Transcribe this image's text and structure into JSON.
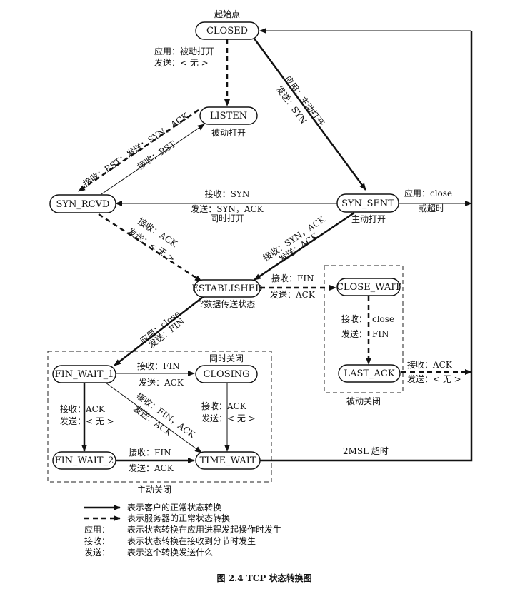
{
  "states": {
    "closed": "CLOSED",
    "listen": "LISTEN",
    "syn_rcvd": "SYN_RCVD",
    "syn_sent": "SYN_SENT",
    "established": "ESTABLISHED",
    "close_wait": "CLOSE_WAIT",
    "last_ack": "LAST_ACK",
    "fin_wait_1": "FIN_WAIT_1",
    "fin_wait_2": "FIN_WAIT_2",
    "closing": "CLOSING",
    "time_wait": "TIME_WAIT"
  },
  "notes": {
    "start": "起始点",
    "passive_open": "被动打开",
    "active_open": "主动打开",
    "simul_open": "同时打开",
    "data_transfer": "?数据传送状态",
    "simul_close": "同时关闭",
    "passive_close": "被动关闭",
    "active_close": "主动关闭"
  },
  "labels": {
    "closed_listen_1": "应用：被动打开",
    "closed_listen_2": "发送：< 无 >",
    "closed_synsent_1": "应用：主动打开",
    "closed_synsent_2": "发送：SYN",
    "listen_synrcvd_outer": "接收：RST；发送：SYN，ACK",
    "synrcvd_listen_inner": "接收：RST",
    "synsent_synrcvd_1": "接收：SYN",
    "synsent_synrcvd_2": "发送：SYN，ACK",
    "synsent_close_1": "应用：close",
    "synsent_close_2": "或超时",
    "synrcvd_est_1": "接收：ACK",
    "synrcvd_est_2": "发送：< 无 >",
    "synsent_est_1": "接收：SYN，ACK",
    "synsent_est_2": "发送：ACK",
    "est_closewait_1": "接收：FIN",
    "est_closewait_2": "发送：ACK",
    "closewait_lastack_1": "接收：",
    "closewait_lastack_1b": "close",
    "closewait_lastack_2": "发送：",
    "closewait_lastack_2b": "FIN",
    "lastack_closed_1": "接收：ACK",
    "lastack_closed_2": "发送：< 无 >",
    "est_finwait1_1": "应用：close",
    "est_finwait1_2": "发送：FIN",
    "finwait1_closing_1": "接收：FIN",
    "finwait1_closing_2": "发送：ACK",
    "finwait1_finwait2_1": "接收：ACK",
    "finwait1_finwait2_2": "发送：< 无 >",
    "finwait1_timewait_1": "接收：FIN，ACK",
    "finwait1_timewait_2": "发送：ACK",
    "closing_timewait_1": "接收：ACK",
    "closing_timewait_2": "发送：< 无 >",
    "finwait2_timewait_1": "接收：FIN",
    "finwait2_timewait_2": "发送：ACK",
    "timewait_closed": "2MSL 超时"
  },
  "legend": {
    "solid": "表示客户的正常状态转换",
    "dashed": "表示服务器的正常状态转换",
    "app_key": "应用：",
    "app_val": "表示状态转换在应用进程发起操作时发生",
    "recv_key": "接收：",
    "recv_val": "表示状态转换在接收到分节时发生",
    "send_key": "发送：",
    "send_val": "表示这个转换发送什么"
  },
  "caption": "图 2.4    TCP 状态转换图"
}
